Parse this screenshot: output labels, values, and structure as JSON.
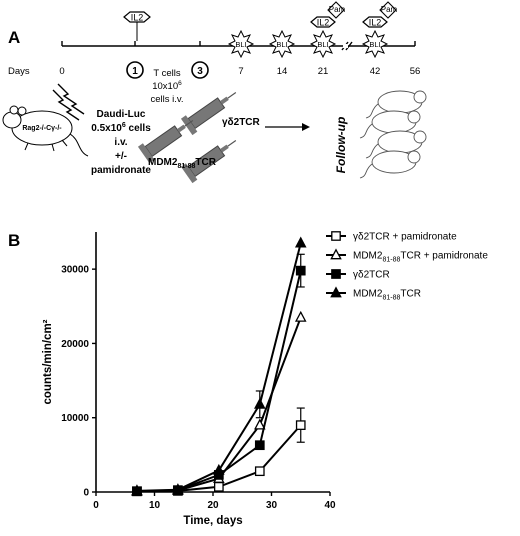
{
  "panel_a": {
    "label": "A",
    "il2_label": "IL2",
    "pam_label": "Pam",
    "bli_label": "BLI",
    "days_label": "Days",
    "tick_labels": [
      "0",
      "1",
      "3",
      "7",
      "14",
      "21",
      "42",
      "56"
    ],
    "tcells_text": [
      "T cells",
      "10x10",
      "6",
      "cells i.v."
    ],
    "mouse_label": "Rag2-/-Cγ-/-",
    "daudi_text": [
      "Daudi-Luc",
      "0.5x10",
      "6",
      " cells",
      "i.v.",
      "+/-",
      "pamidronate"
    ],
    "syringe_gd_label": "γδ2TCR",
    "syringe_mdm_label_main": "MDM2",
    "syringe_mdm_label_sub": "81-88",
    "syringe_mdm_label_tail": "TCR",
    "follow_up": "Follow-up"
  },
  "panel_b": {
    "label": "B",
    "colors": {
      "line": "#000000",
      "background": "#ffffff"
    }
  },
  "chart_data": {
    "type": "line",
    "xlabel": "Time, days",
    "ylabel": "counts/min/cm²",
    "xlim": [
      0,
      40
    ],
    "ylim": [
      0,
      35000
    ],
    "x_ticks": [
      0,
      10,
      20,
      30,
      40
    ],
    "y_ticks": [
      0,
      10000,
      20000,
      30000
    ],
    "legend_position": "top-right",
    "series": [
      {
        "name": "γδ2TCR + pamidronate",
        "legend_parts": [
          "γδ2TCR + pamidronate",
          "",
          ""
        ],
        "marker": "open-square",
        "x": [
          7,
          14,
          21,
          28,
          35
        ],
        "y": [
          100,
          150,
          700,
          2800,
          9000
        ],
        "error": [
          0,
          0,
          0,
          0,
          2300
        ]
      },
      {
        "name": "MDM2 81-88 TCR + pamidronate",
        "legend_parts": [
          "MDM2",
          "81-88",
          "TCR + pamidronate"
        ],
        "marker": "open-triangle",
        "x": [
          7,
          14,
          21,
          28,
          35
        ],
        "y": [
          100,
          200,
          1800,
          9000,
          23500
        ],
        "error": [
          0,
          0,
          0,
          0,
          0
        ]
      },
      {
        "name": "γδ2TCR",
        "legend_parts": [
          "γδ2TCR",
          "",
          ""
        ],
        "marker": "filled-square",
        "x": [
          7,
          14,
          21,
          28,
          35
        ],
        "y": [
          100,
          250,
          2300,
          6300,
          29800
        ],
        "error": [
          0,
          0,
          0,
          0,
          2200
        ]
      },
      {
        "name": "MDM2 81-88 TCR",
        "legend_parts": [
          "MDM2",
          "81-88",
          "TCR"
        ],
        "marker": "filled-triangle",
        "x": [
          7,
          14,
          21,
          28,
          35
        ],
        "y": [
          150,
          300,
          2900,
          11800,
          33500
        ],
        "error": [
          0,
          0,
          0,
          1800,
          0
        ]
      }
    ]
  }
}
